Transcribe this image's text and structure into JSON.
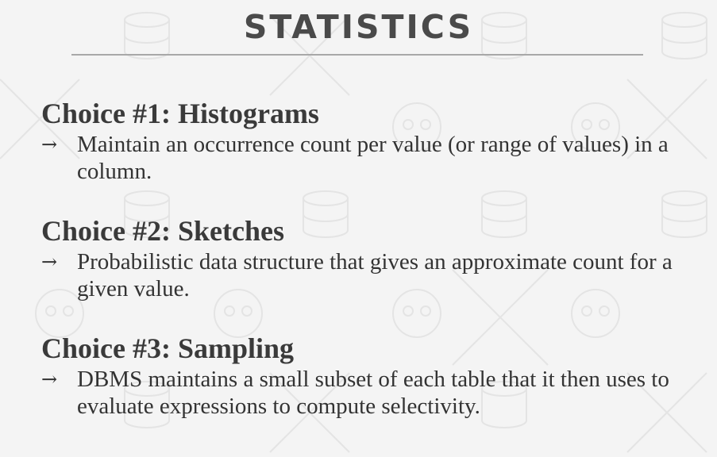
{
  "slide": {
    "title": "STATISTICS"
  },
  "choices": [
    {
      "heading": "Choice #1: Histograms",
      "bullet": "Maintain an occurrence count per value (or range of values) in a column."
    },
    {
      "heading": "Choice #2: Sketches",
      "bullet": "Probabilistic data structure that gives an approximate count for a given value."
    },
    {
      "heading": "Choice #3: Sampling",
      "bullet": "DBMS maintains a small subset of each table that it then uses to evaluate expressions to compute selectivity."
    }
  ],
  "bullet_marker": "→",
  "colors": {
    "background": "#f4f4f4",
    "title": "#4a4a4a",
    "rule": "#a8a8a8",
    "text": "#333333",
    "watermark": "#e6e6e6"
  }
}
